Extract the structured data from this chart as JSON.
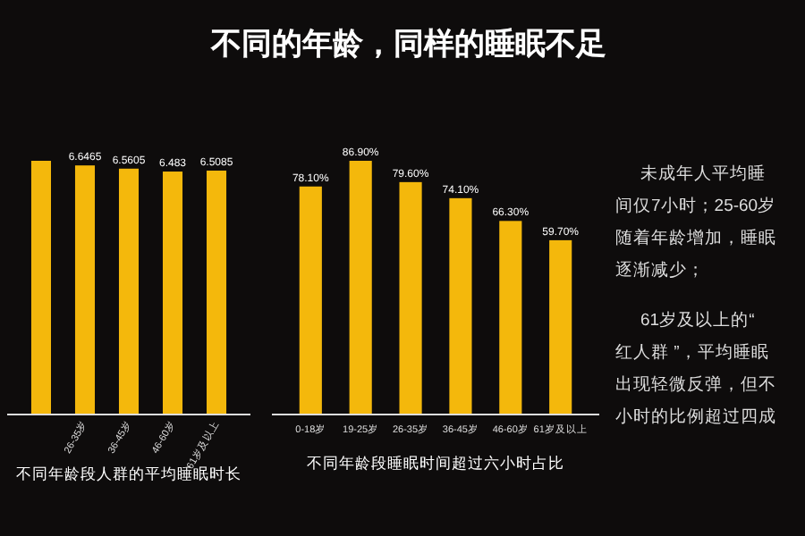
{
  "chart_data": [
    {
      "type": "bar",
      "xlabel": "不同年龄段人群的平均睡眠时长",
      "categories": [
        null,
        "26-35岁",
        "36-45岁",
        "46-60岁",
        "61岁及以上"
      ],
      "values": [
        6.77,
        6.6465,
        6.5605,
        6.483,
        6.5085
      ],
      "value_labels": [
        null,
        "6.6465",
        "6.5605",
        "6.483",
        "6.5085"
      ],
      "color": "#f4b80c",
      "tick_labels": "x"
    },
    {
      "type": "bar",
      "title": "不同的年龄，同样的睡眠不足",
      "xlabel": "不同年龄段睡眠时间超过六小时占比",
      "categories": [
        "0-18岁",
        "19-25岁",
        "26-35岁",
        "36-45岁",
        "46-60岁",
        "61岁及以上"
      ],
      "values": [
        78.1,
        86.9,
        79.6,
        74.1,
        66.3,
        59.7
      ],
      "value_labels": [
        "78.10%",
        "86.90%",
        "79.60%",
        "74.10%",
        "66.30%",
        "59.70%"
      ],
      "color": "#f4b80c",
      "tick_labels": "x"
    },
    {
      "type": "other",
      "annotations": [
        "未成年人平均睡",
        "间仅7小时；25-60岁",
        "随着年龄增加，睡眠",
        "逐渐减少；",
        "61岁及以上的“",
        "红人群 ”，平均睡眠",
        "出现轻微反弹，但不",
        "小时的比例超过四成"
      ]
    }
  ]
}
